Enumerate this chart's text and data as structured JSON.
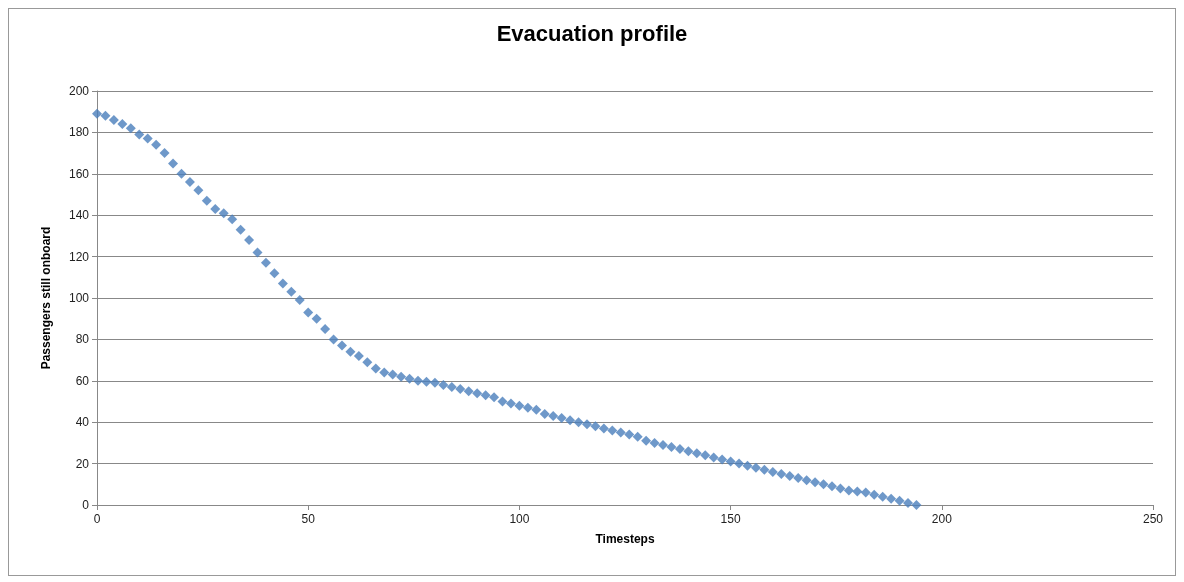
{
  "chart_data": {
    "type": "scatter",
    "title": "Evacuation profile",
    "xlabel": "Timesteps",
    "ylabel": "Passengers still onboard",
    "x": [
      0,
      2,
      4,
      6,
      8,
      10,
      12,
      14,
      16,
      18,
      20,
      22,
      24,
      26,
      28,
      30,
      32,
      34,
      36,
      38,
      40,
      42,
      44,
      46,
      48,
      50,
      52,
      54,
      56,
      58,
      60,
      62,
      64,
      66,
      68,
      70,
      72,
      74,
      76,
      78,
      80,
      82,
      84,
      86,
      88,
      90,
      92,
      94,
      96,
      98,
      100,
      102,
      104,
      106,
      108,
      110,
      112,
      114,
      116,
      118,
      120,
      122,
      124,
      126,
      128,
      130,
      132,
      134,
      136,
      138,
      140,
      142,
      144,
      146,
      148,
      150,
      152,
      154,
      156,
      158,
      160,
      162,
      164,
      166,
      168,
      170,
      172,
      174,
      176,
      178,
      180,
      182,
      184,
      186,
      188,
      190,
      192,
      194
    ],
    "series": [
      {
        "color": "#4a7ebb",
        "values": [
          189,
          188,
          186,
          184,
          182,
          179,
          177,
          174,
          170,
          165,
          160,
          156,
          152,
          147,
          143,
          141,
          138,
          133,
          128,
          122,
          117,
          112,
          107,
          103,
          99,
          93,
          90,
          85,
          80,
          77,
          74,
          72,
          69,
          66,
          64,
          63,
          62,
          61,
          60,
          59.5,
          59,
          58,
          57,
          56,
          55,
          54,
          53,
          52,
          50,
          49,
          48,
          47,
          46,
          44,
          43,
          42,
          41,
          40,
          39,
          38,
          37,
          36,
          35,
          34,
          33,
          31,
          30,
          29,
          28,
          27,
          26,
          25,
          24,
          23,
          22,
          21,
          20,
          19,
          18,
          17,
          16,
          15,
          14,
          13,
          12,
          11,
          10,
          9,
          8,
          7,
          6.5,
          6,
          5,
          4,
          3,
          2,
          1,
          0
        ]
      }
    ],
    "xlim": [
      0,
      250
    ],
    "xticks": [
      0,
      50,
      100,
      150,
      200,
      250
    ],
    "ylim": [
      0,
      200
    ],
    "yticks": [
      0,
      20,
      40,
      60,
      80,
      100,
      120,
      140,
      160,
      180,
      200
    ],
    "grid": "y",
    "marker": "diamond"
  }
}
